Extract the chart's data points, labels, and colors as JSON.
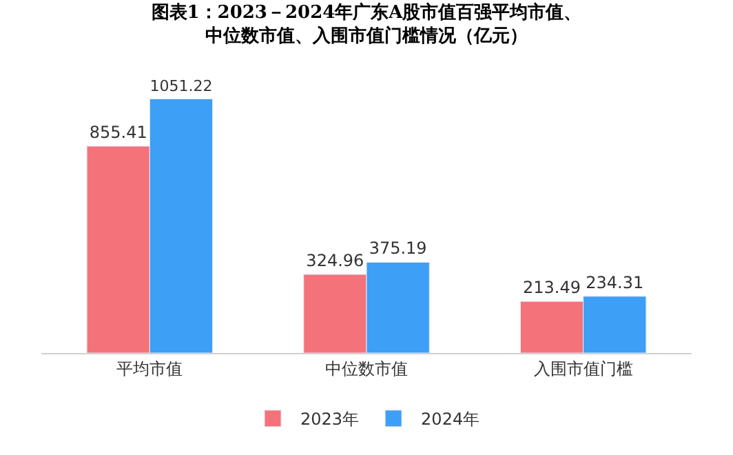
{
  "chart_data": {
    "type": "bar",
    "title": "图表1：2023－2024年广东A股市值百强平均市值、中位数市值、入围市值门槛情况（亿元）",
    "categories": [
      "平均市值",
      "中位数市值",
      "入围市值门槛"
    ],
    "series": [
      {
        "name": "2023年",
        "color": "#f4727a",
        "values": [
          855.41,
          324.96,
          213.49
        ]
      },
      {
        "name": "2024年",
        "color": "#3d9ff5",
        "values": [
          1051.22,
          375.19,
          234.31
        ]
      }
    ],
    "data_labels": true,
    "legend": "bottom"
  }
}
